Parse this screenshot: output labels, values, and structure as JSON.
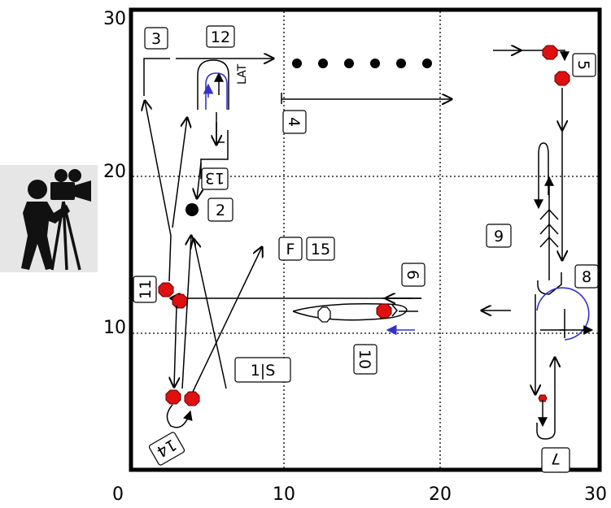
{
  "field": {
    "x_ticks": [
      "0",
      "10",
      "20",
      "30"
    ],
    "y_ticks": [
      "20",
      "10"
    ],
    "corner_label": "30",
    "camera_icon": "camera-operator-icon"
  },
  "labels": {
    "l3": "3",
    "l12": "12",
    "lat": "LAT",
    "l4": "4",
    "l5": "5",
    "l13": "13",
    "l2": "2",
    "l9": "9",
    "l8": "8",
    "f": "F",
    "l15": "15",
    "l6": "6",
    "l10": "10",
    "l11": "11",
    "s1": "1|S",
    "l14": "14",
    "l7": "7"
  },
  "colors": {
    "ink": "#000000",
    "player_marker": "#e01010",
    "blue_path": "#3333cc"
  }
}
